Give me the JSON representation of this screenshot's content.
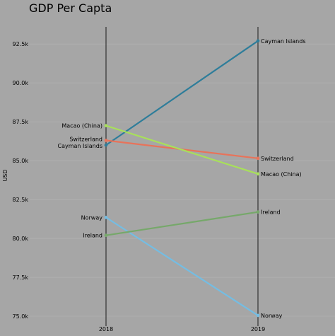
{
  "chart_data": {
    "type": "line",
    "title": "GDP Per Capta",
    "xlabel": "",
    "ylabel": "USD",
    "categories": [
      "2018",
      "2019"
    ],
    "ylim": [
      74500,
      93600
    ],
    "yticks": [
      75000,
      77500,
      80000,
      82500,
      85000,
      87500,
      90000,
      92500
    ],
    "ytick_labels": [
      "75.0k",
      "77.5k",
      "80.0k",
      "82.5k",
      "85.0k",
      "87.5k",
      "90.0k",
      "92.5k"
    ],
    "grid": true,
    "series": [
      {
        "name": "Cayman Islands",
        "values": [
          86000,
          92700
        ],
        "color": "#2e7d9a"
      },
      {
        "name": "Switzerland",
        "values": [
          86300,
          85150
        ],
        "color": "#e8735a"
      },
      {
        "name": "Macao (China)",
        "values": [
          87250,
          84150
        ],
        "color": "#a8e05a"
      },
      {
        "name": "Norway",
        "values": [
          81350,
          75050
        ],
        "color": "#74bde3"
      },
      {
        "name": "Ireland",
        "values": [
          80200,
          81700
        ],
        "color": "#76a86a"
      }
    ]
  }
}
